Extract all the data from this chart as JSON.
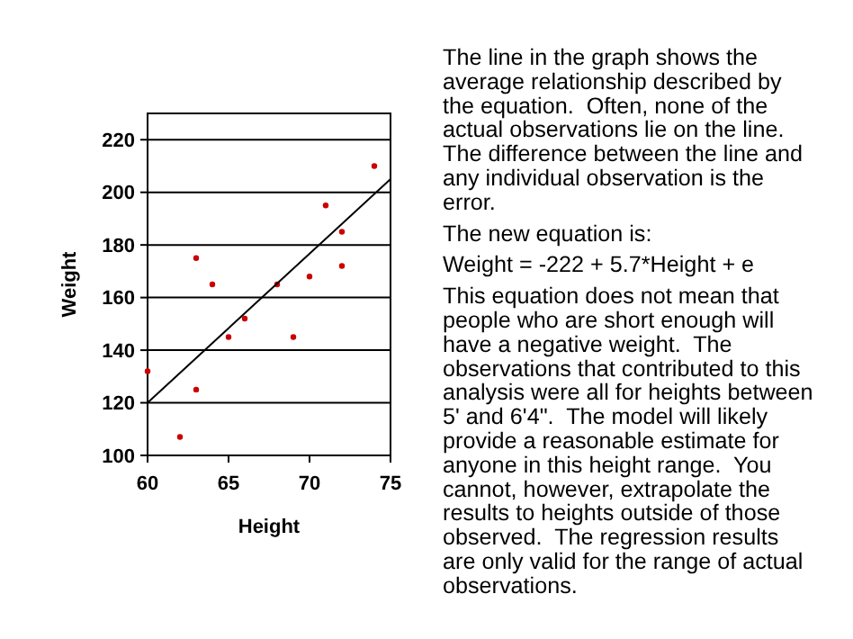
{
  "chart_data": {
    "type": "scatter",
    "xlabel": "Height",
    "ylabel": "Weight",
    "xlim": [
      60,
      75
    ],
    "ylim": [
      100,
      230
    ],
    "xticks": [
      60,
      65,
      70,
      75
    ],
    "yticks": [
      100,
      120,
      140,
      160,
      180,
      200,
      220
    ],
    "grid": "y",
    "series": [
      {
        "color": "#cc0000",
        "marker": "circle",
        "x": [
          60,
          62,
          63,
          63,
          64,
          65,
          66,
          68,
          69,
          70,
          71,
          72,
          72,
          74
        ],
        "values": [
          132,
          107,
          175,
          125,
          165,
          145,
          152,
          165,
          145,
          168,
          195,
          185,
          172,
          210
        ]
      },
      {
        "type": "line",
        "color": "#000000",
        "x": [
          60,
          75
        ],
        "values": [
          120,
          205
        ]
      }
    ],
    "annotations": [
      "The line in the graph shows the average relationship described by the equation.  Often, none of the actual observations lie on the line. The difference between the line and any individual observation is the error.",
      "The new equation is:",
      "Weight = -222 + 5.7*Height + e",
      "This equation does not mean that people who are short enough will have a negative weight.  The observations that contributed to this analysis were all for heights between 5' and 6'4\".  The model will likely provide a reasonable estimate for anyone in this height range.  You cannot, however, extrapolate the results to heights outside of those observed.  The regression results are only valid for the range of actual observations."
    ]
  }
}
